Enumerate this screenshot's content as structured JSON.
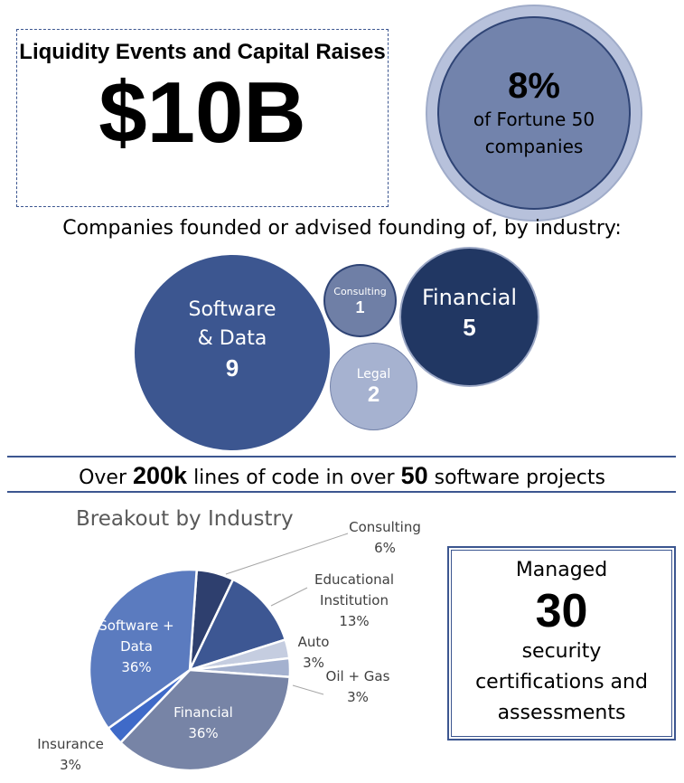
{
  "liquidity": {
    "title": "Liquidity Events and Capital Raises",
    "value": "$10B"
  },
  "fortune": {
    "value": "8%",
    "line1": "of Fortune 50",
    "line2": "companies"
  },
  "companies": {
    "heading": "Companies founded or advised founding of, by industry:",
    "bubbles": [
      {
        "label1": "Software",
        "label2": "& Data",
        "count": "9",
        "color": "#3c5690"
      },
      {
        "label1": "Consulting",
        "count": "1",
        "color": "#6f7fa6"
      },
      {
        "label1": "Legal",
        "count": "2",
        "color": "#a6b2d0"
      },
      {
        "label1": "Financial",
        "count": "5",
        "color": "#213763"
      }
    ]
  },
  "banner": {
    "p1": "Over ",
    "b1": "200k",
    "p2": " lines of code in over ",
    "b2": "50",
    "p3": " software projects"
  },
  "managed": {
    "line1": "Managed",
    "number": "30",
    "line2": "security",
    "line3": "certifications and",
    "line4": "assessments"
  },
  "chart_data": {
    "type": "pie",
    "title": "Breakout by Industry",
    "categories": [
      "Consulting",
      "Educational Institution",
      "Auto",
      "Oil + Gas",
      "Financial",
      "Insurance",
      "Software + Data"
    ],
    "values": [
      6,
      13,
      3,
      3,
      36,
      3,
      36
    ],
    "labels": [
      "6%",
      "13%",
      "3%",
      "3%",
      "36%",
      "3%",
      "36%"
    ],
    "colors": [
      "#2e3f6e",
      "#3d5793",
      "#c5cde0",
      "#a4b1cf",
      "#7784a6",
      "#3f6ac8",
      "#5b7bbf"
    ]
  }
}
